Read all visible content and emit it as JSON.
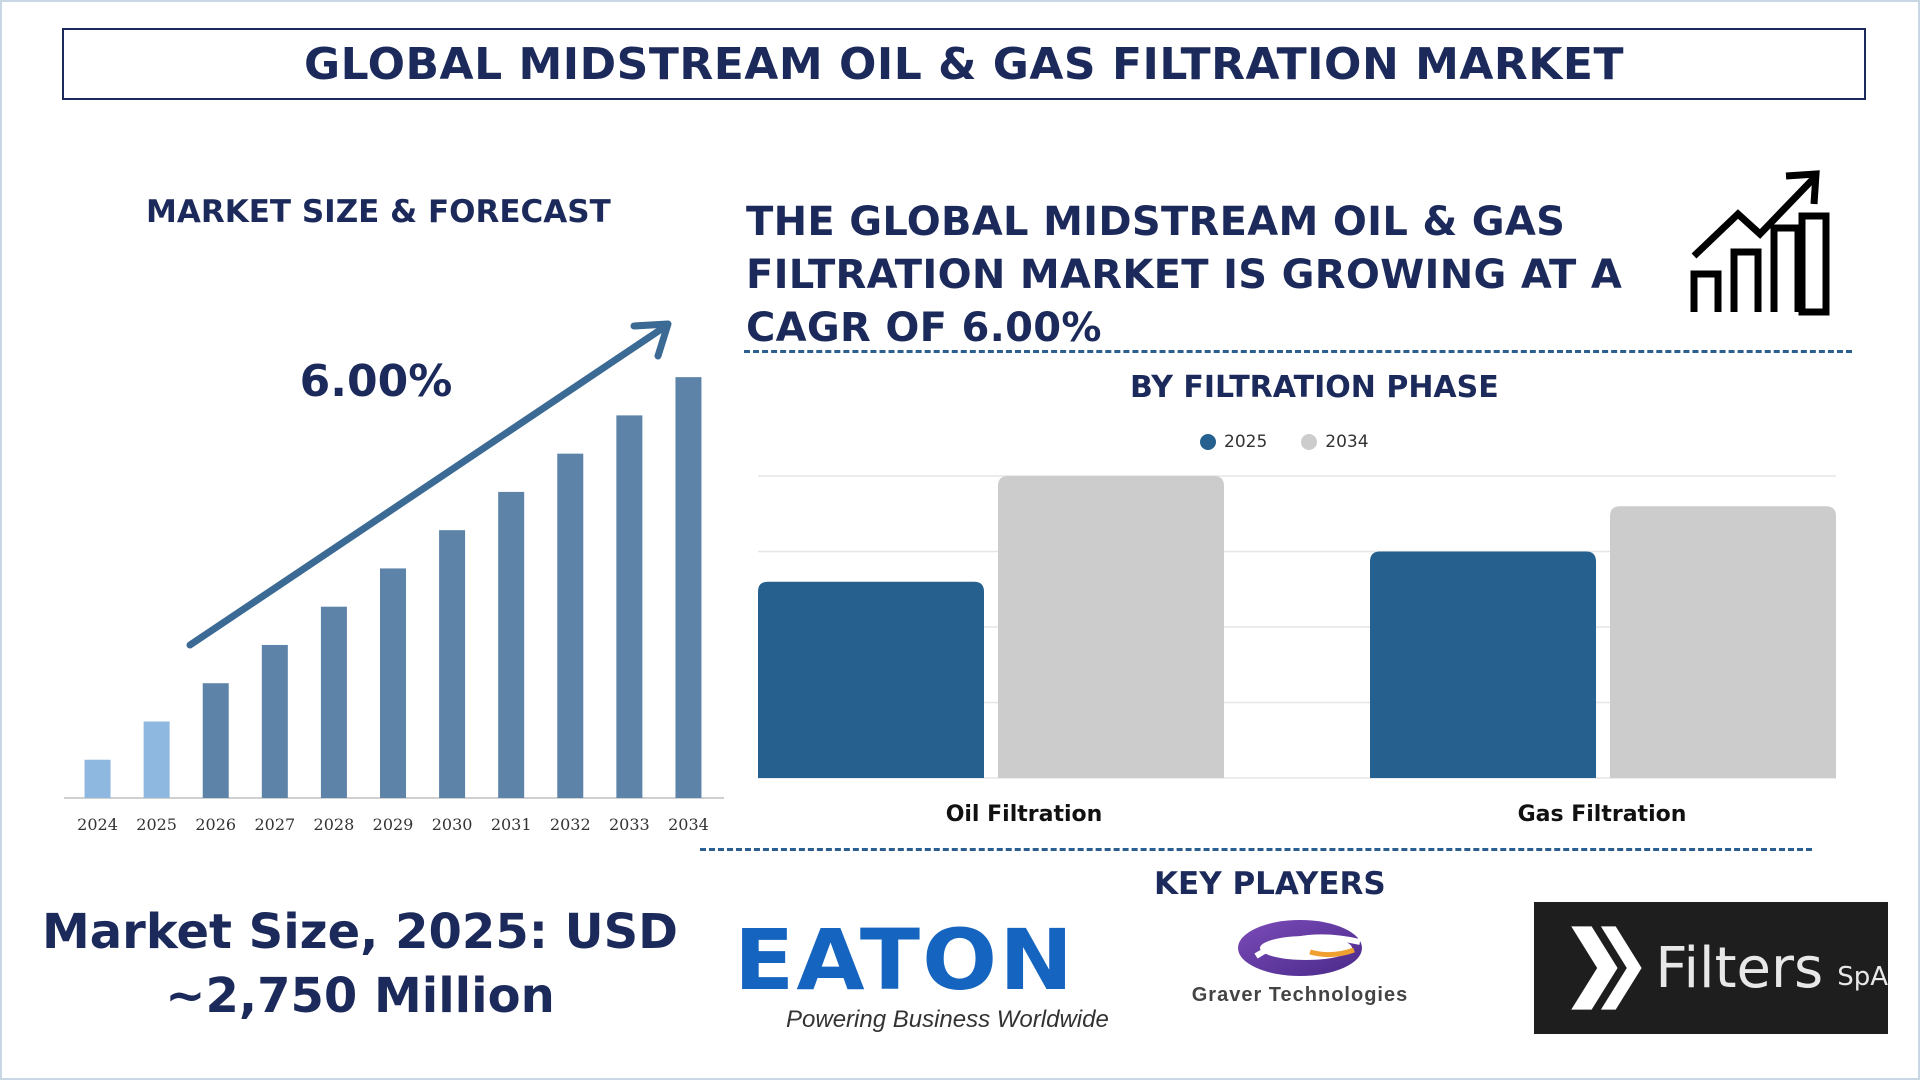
{
  "title": "GLOBAL MIDSTREAM OIL & GAS FILTRATION MARKET",
  "forecast_section": {
    "heading": "MARKET SIZE & FORECAST",
    "growth_label": "6.00%"
  },
  "cagr_statement": "THE GLOBAL MIDSTREAM OIL & GAS FILTRATION MARKET IS GROWING AT A CAGR OF 6.00%",
  "phase_section": {
    "heading": "BY FILTRATION PHASE"
  },
  "market_size": {
    "line1": "Market Size, 2025: USD",
    "line2": "~2,750 Million"
  },
  "key_players": {
    "heading": "KEY PLAYERS",
    "eaton_wordmark": "EATON",
    "eaton_tagline": "Powering Business Worldwide",
    "graver_name": "Graver Technologies",
    "filters_wordmark": "Filters",
    "filters_suffix": "SpA"
  },
  "icons": [
    "growth-chart-icon",
    "trend-arrow-icon"
  ],
  "colors": {
    "navy": "#1b2a5a",
    "bar_light": "#8fb8e0",
    "bar_dark": "#5d83a8",
    "arrow": "#3b6a94",
    "series_2025": "#25608e",
    "series_2034": "#cccccc",
    "dashed": "#2a5f8f"
  },
  "chart_data": [
    {
      "type": "bar",
      "title": "MARKET SIZE & FORECAST",
      "categories": [
        "2024",
        "2025",
        "2026",
        "2027",
        "2028",
        "2029",
        "2030",
        "2031",
        "2032",
        "2033",
        "2034"
      ],
      "values": [
        10,
        20,
        30,
        40,
        50,
        60,
        70,
        80,
        90,
        100,
        110
      ],
      "highlight_categories": [
        "2024",
        "2025"
      ],
      "annotation": "6.00%",
      "ylim": [
        0,
        115
      ],
      "grid": false,
      "legend": "none"
    },
    {
      "type": "bar",
      "title": "BY FILTRATION PHASE",
      "categories": [
        "Oil Filtration",
        "Gas Filtration"
      ],
      "series": [
        {
          "name": "2025",
          "values": [
            2.6,
            3.0
          ]
        },
        {
          "name": "2034",
          "values": [
            4.0,
            3.6
          ]
        }
      ],
      "ylim": [
        0,
        4.0
      ],
      "grid": true,
      "legend": "top-center"
    }
  ]
}
